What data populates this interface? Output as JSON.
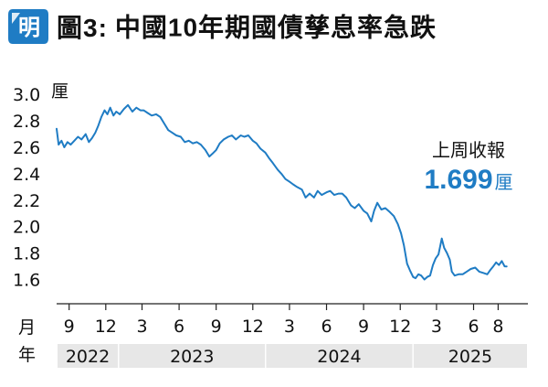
{
  "header": {
    "logo_char": "明",
    "figure_label": "圖3:",
    "title": "中國10年期國債孳息率急跌"
  },
  "colors": {
    "line": "#1f7cc4",
    "logo_bg": "#1f7cc4",
    "accent": "#1f7cc4",
    "year_band": "#e7e7e7"
  },
  "annotation": {
    "label": "上周收報",
    "value": "1.699",
    "unit": "厘"
  },
  "chart_data": {
    "type": "line",
    "title": "中國10年期國債孳息率急跌",
    "ylabel_unit": "厘",
    "xlabel_month": "月",
    "xlabel_year": "年",
    "ylim": [
      1.5,
      3.05
    ],
    "yticks": [
      "3.0",
      "2.8",
      "2.6",
      "2.4",
      "2.2",
      "2.0",
      "1.8",
      "1.6"
    ],
    "xlim": [
      "2022-08-01",
      "2025-08-25"
    ],
    "xticks": [
      {
        "date": "2022-09-01",
        "label": "9"
      },
      {
        "date": "2022-12-01",
        "label": "12"
      },
      {
        "date": "2023-03-01",
        "label": "3"
      },
      {
        "date": "2023-06-01",
        "label": "6"
      },
      {
        "date": "2023-09-01",
        "label": "9"
      },
      {
        "date": "2023-12-01",
        "label": "12"
      },
      {
        "date": "2024-03-01",
        "label": "3"
      },
      {
        "date": "2024-06-01",
        "label": "6"
      },
      {
        "date": "2024-09-01",
        "label": "9"
      },
      {
        "date": "2024-12-01",
        "label": "12"
      },
      {
        "date": "2025-03-01",
        "label": "3"
      },
      {
        "date": "2025-06-01",
        "label": "6"
      },
      {
        "date": "2025-08-01",
        "label": "8"
      }
    ],
    "years": [
      {
        "label": "2022",
        "start": "2022-08-01",
        "end": "2022-12-31"
      },
      {
        "label": "2023",
        "start": "2023-01-01",
        "end": "2023-12-31"
      },
      {
        "label": "2024",
        "start": "2024-01-01",
        "end": "2024-12-31"
      },
      {
        "label": "2025",
        "start": "2025-01-01",
        "end": "2025-08-25"
      }
    ],
    "grid": false,
    "series": [
      {
        "points": [
          [
            "2022-08-01",
            2.74
          ],
          [
            "2022-08-06",
            2.62
          ],
          [
            "2022-08-13",
            2.65
          ],
          [
            "2022-08-20",
            2.6
          ],
          [
            "2022-08-28",
            2.64
          ],
          [
            "2022-09-05",
            2.62
          ],
          [
            "2022-09-14",
            2.65
          ],
          [
            "2022-09-23",
            2.68
          ],
          [
            "2022-10-02",
            2.66
          ],
          [
            "2022-10-12",
            2.7
          ],
          [
            "2022-10-20",
            2.64
          ],
          [
            "2022-10-28",
            2.67
          ],
          [
            "2022-11-05",
            2.71
          ],
          [
            "2022-11-12",
            2.76
          ],
          [
            "2022-11-20",
            2.83
          ],
          [
            "2022-11-28",
            2.88
          ],
          [
            "2022-12-05",
            2.85
          ],
          [
            "2022-12-12",
            2.9
          ],
          [
            "2022-12-20",
            2.84
          ],
          [
            "2022-12-27",
            2.87
          ],
          [
            "2023-01-05",
            2.85
          ],
          [
            "2023-01-15",
            2.89
          ],
          [
            "2023-01-25",
            2.92
          ],
          [
            "2023-02-05",
            2.87
          ],
          [
            "2023-02-15",
            2.9
          ],
          [
            "2023-02-25",
            2.88
          ],
          [
            "2023-03-05",
            2.88
          ],
          [
            "2023-03-15",
            2.86
          ],
          [
            "2023-03-25",
            2.84
          ],
          [
            "2023-04-05",
            2.85
          ],
          [
            "2023-04-15",
            2.83
          ],
          [
            "2023-04-25",
            2.78
          ],
          [
            "2023-05-05",
            2.73
          ],
          [
            "2023-05-15",
            2.71
          ],
          [
            "2023-05-25",
            2.69
          ],
          [
            "2023-06-05",
            2.68
          ],
          [
            "2023-06-15",
            2.64
          ],
          [
            "2023-06-25",
            2.65
          ],
          [
            "2023-07-05",
            2.63
          ],
          [
            "2023-07-15",
            2.64
          ],
          [
            "2023-07-25",
            2.62
          ],
          [
            "2023-08-05",
            2.58
          ],
          [
            "2023-08-15",
            2.53
          ],
          [
            "2023-08-22",
            2.55
          ],
          [
            "2023-09-01",
            2.58
          ],
          [
            "2023-09-10",
            2.63
          ],
          [
            "2023-09-20",
            2.66
          ],
          [
            "2023-10-01",
            2.68
          ],
          [
            "2023-10-10",
            2.69
          ],
          [
            "2023-10-20",
            2.66
          ],
          [
            "2023-11-01",
            2.69
          ],
          [
            "2023-11-10",
            2.68
          ],
          [
            "2023-11-20",
            2.69
          ],
          [
            "2023-12-01",
            2.65
          ],
          [
            "2023-12-10",
            2.63
          ],
          [
            "2023-12-20",
            2.59
          ],
          [
            "2024-01-01",
            2.56
          ],
          [
            "2024-01-10",
            2.52
          ],
          [
            "2024-01-20",
            2.48
          ],
          [
            "2024-02-01",
            2.43
          ],
          [
            "2024-02-10",
            2.4
          ],
          [
            "2024-02-20",
            2.36
          ],
          [
            "2024-03-01",
            2.34
          ],
          [
            "2024-03-10",
            2.32
          ],
          [
            "2024-03-20",
            2.3
          ],
          [
            "2024-04-01",
            2.28
          ],
          [
            "2024-04-10",
            2.22
          ],
          [
            "2024-04-20",
            2.25
          ],
          [
            "2024-05-01",
            2.22
          ],
          [
            "2024-05-10",
            2.27
          ],
          [
            "2024-05-20",
            2.24
          ],
          [
            "2024-06-01",
            2.26
          ],
          [
            "2024-06-10",
            2.27
          ],
          [
            "2024-06-20",
            2.24
          ],
          [
            "2024-07-01",
            2.25
          ],
          [
            "2024-07-10",
            2.25
          ],
          [
            "2024-07-20",
            2.22
          ],
          [
            "2024-08-01",
            2.16
          ],
          [
            "2024-08-10",
            2.14
          ],
          [
            "2024-08-20",
            2.17
          ],
          [
            "2024-09-01",
            2.12
          ],
          [
            "2024-09-10",
            2.1
          ],
          [
            "2024-09-20",
            2.04
          ],
          [
            "2024-09-27",
            2.12
          ],
          [
            "2024-10-05",
            2.18
          ],
          [
            "2024-10-15",
            2.13
          ],
          [
            "2024-10-25",
            2.14
          ],
          [
            "2024-11-05",
            2.11
          ],
          [
            "2024-11-15",
            2.08
          ],
          [
            "2024-11-25",
            2.02
          ],
          [
            "2024-12-03",
            1.95
          ],
          [
            "2024-12-10",
            1.86
          ],
          [
            "2024-12-18",
            1.72
          ],
          [
            "2024-12-25",
            1.67
          ],
          [
            "2025-01-02",
            1.62
          ],
          [
            "2025-01-08",
            1.61
          ],
          [
            "2025-01-15",
            1.64
          ],
          [
            "2025-01-22",
            1.63
          ],
          [
            "2025-01-30",
            1.6
          ],
          [
            "2025-02-06",
            1.62
          ],
          [
            "2025-02-13",
            1.63
          ],
          [
            "2025-02-20",
            1.71
          ],
          [
            "2025-02-27",
            1.76
          ],
          [
            "2025-03-06",
            1.79
          ],
          [
            "2025-03-10",
            1.85
          ],
          [
            "2025-03-14",
            1.91
          ],
          [
            "2025-03-20",
            1.84
          ],
          [
            "2025-03-27",
            1.8
          ],
          [
            "2025-04-03",
            1.75
          ],
          [
            "2025-04-08",
            1.66
          ],
          [
            "2025-04-15",
            1.63
          ],
          [
            "2025-04-25",
            1.64
          ],
          [
            "2025-05-05",
            1.64
          ],
          [
            "2025-05-15",
            1.66
          ],
          [
            "2025-05-25",
            1.68
          ],
          [
            "2025-06-05",
            1.69
          ],
          [
            "2025-06-15",
            1.66
          ],
          [
            "2025-06-25",
            1.65
          ],
          [
            "2025-07-05",
            1.64
          ],
          [
            "2025-07-12",
            1.67
          ],
          [
            "2025-07-20",
            1.7
          ],
          [
            "2025-07-27",
            1.73
          ],
          [
            "2025-08-03",
            1.71
          ],
          [
            "2025-08-10",
            1.74
          ],
          [
            "2025-08-17",
            1.7
          ],
          [
            "2025-08-22",
            1.699
          ]
        ]
      }
    ]
  }
}
